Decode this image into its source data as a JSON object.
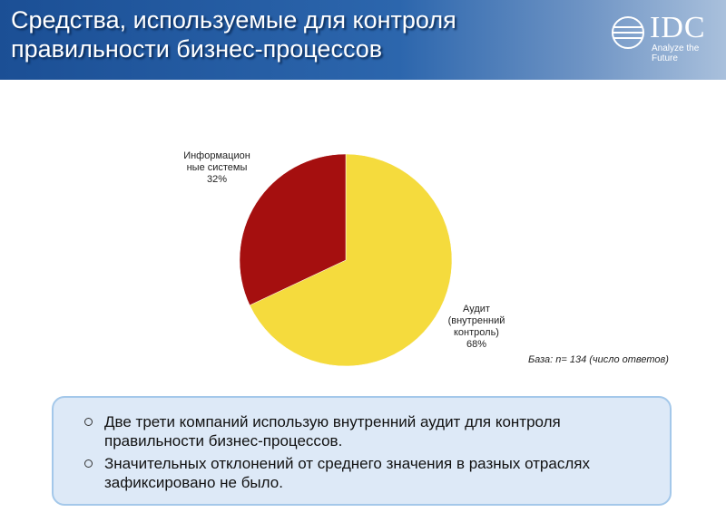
{
  "header": {
    "title": "Средства, используемые для контроля правильности бизнес-процессов",
    "logo": "IDC",
    "tagline": "Analyze the Future"
  },
  "chart_data": {
    "type": "pie",
    "categories": [
      "Аудит (внутренний контроль)",
      "Информационные системы"
    ],
    "values": [
      68,
      32
    ],
    "value_labels": [
      "68%",
      "32%"
    ],
    "colors": [
      "#f5db3d",
      "#a50f0f"
    ],
    "start": "top",
    "direction": "clockwise"
  },
  "note": "База: n= 134 (число ответов)",
  "bullets": [
    "Две трети компаний использую внутренний аудит для контроля правильности бизнес-процессов.",
    "Значительных отклонений от среднего значения в разных отраслях зафиксировано не было."
  ]
}
